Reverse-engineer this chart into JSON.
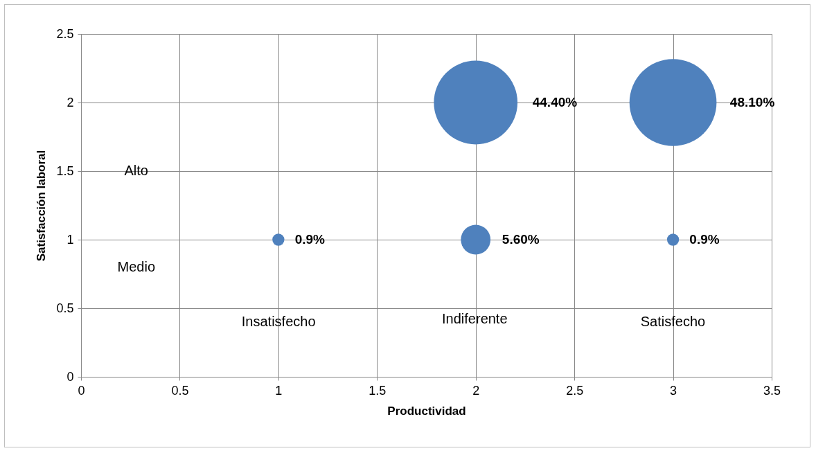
{
  "chart_data": {
    "type": "bubble",
    "xlabel": "Productividad",
    "ylabel": "Satisfacción laboral",
    "x": [
      1,
      2,
      3,
      2,
      3
    ],
    "values": [
      1,
      1,
      1,
      2,
      2
    ],
    "sizes": [
      0.019,
      0.116,
      0.019,
      0.923,
      1
    ],
    "color": "#4f81bd",
    "xlim": [
      0,
      3.5
    ],
    "xticks": [
      0,
      0.5,
      1,
      1.5,
      2,
      2.5,
      3,
      3.5
    ],
    "ylim": [
      0,
      2.5
    ],
    "yticks": [
      0,
      0.5,
      1,
      1.5,
      2,
      2.5
    ],
    "grid": true,
    "legend": false,
    "annotations": [
      {
        "text": "0.9%",
        "x": 1,
        "y": 1
      },
      {
        "text": "5.60%",
        "x": 2,
        "y": 1
      },
      {
        "text": "0.9%",
        "x": 3,
        "y": 1
      },
      "44.40%",
      "48.10%",
      "Alto",
      "Medio",
      "Insatisfecho",
      "Indiferente",
      "Satisfecho"
    ]
  }
}
